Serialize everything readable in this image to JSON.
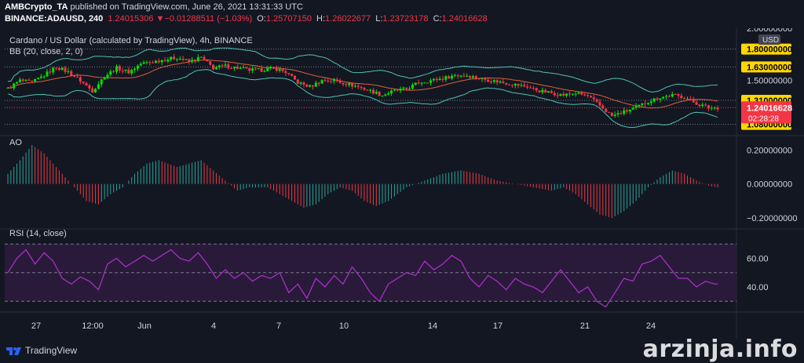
{
  "header": {
    "author": "AMBCrypto_TA",
    "published": "published on TradingView.com, June 26, 2021 13:31:33 UTC",
    "symbol": "BINANCE:ADAUSD, 240",
    "price": "1.24015306",
    "change": "−0.01288511 (−1.03%)",
    "o_label": "O:",
    "o_value": "1.25707150",
    "h_label": "H:",
    "h_value": "1.26022677",
    "l_label": "L:",
    "l_value": "1.23723178",
    "c_label": "C:",
    "c_value": "1.24016628"
  },
  "chart_data": [
    {
      "type": "candlestick",
      "title": "Cardano / US Dollar (calculated by TradingView), 4h, BINANCE",
      "indicator_label": "BB (20, close, 2, 0)",
      "currency": "USD",
      "price_labels": [
        "2.00000000",
        "1.80000000",
        "1.63000000",
        "1.50000000",
        "1.31000000",
        "1.08000000"
      ],
      "horizontal_levels": [
        1.8,
        1.63,
        1.31,
        1.08
      ],
      "last_price": "1.24016628",
      "countdown": "02:28:28",
      "ylim": [
        0.98,
        2.0
      ],
      "close_path": [
        [
          0,
          1.42
        ],
        [
          4,
          1.5
        ],
        [
          8,
          1.48
        ],
        [
          12,
          1.55
        ],
        [
          16,
          1.63
        ],
        [
          20,
          1.58
        ],
        [
          24,
          1.5
        ],
        [
          28,
          1.4
        ],
        [
          32,
          1.54
        ],
        [
          36,
          1.62
        ],
        [
          40,
          1.58
        ],
        [
          44,
          1.66
        ],
        [
          48,
          1.68
        ],
        [
          52,
          1.7
        ],
        [
          56,
          1.72
        ],
        [
          60,
          1.68
        ],
        [
          64,
          1.72
        ],
        [
          68,
          1.62
        ],
        [
          72,
          1.64
        ],
        [
          76,
          1.62
        ],
        [
          80,
          1.6
        ],
        [
          84,
          1.6
        ],
        [
          88,
          1.62
        ],
        [
          92,
          1.58
        ],
        [
          96,
          1.48
        ],
        [
          100,
          1.44
        ],
        [
          104,
          1.5
        ],
        [
          108,
          1.5
        ],
        [
          112,
          1.47
        ],
        [
          116,
          1.44
        ],
        [
          120,
          1.4
        ],
        [
          124,
          1.36
        ],
        [
          128,
          1.4
        ],
        [
          132,
          1.42
        ],
        [
          136,
          1.48
        ],
        [
          140,
          1.5
        ],
        [
          144,
          1.52
        ],
        [
          148,
          1.55
        ],
        [
          152,
          1.55
        ],
        [
          156,
          1.52
        ],
        [
          160,
          1.5
        ],
        [
          164,
          1.48
        ],
        [
          168,
          1.46
        ],
        [
          172,
          1.44
        ],
        [
          176,
          1.4
        ],
        [
          180,
          1.38
        ],
        [
          184,
          1.36
        ],
        [
          188,
          1.38
        ],
        [
          192,
          1.35
        ],
        [
          196,
          1.26
        ],
        [
          200,
          1.16
        ],
        [
          204,
          1.2
        ],
        [
          208,
          1.24
        ],
        [
          212,
          1.3
        ],
        [
          216,
          1.34
        ],
        [
          220,
          1.36
        ],
        [
          224,
          1.34
        ],
        [
          228,
          1.28
        ],
        [
          232,
          1.24
        ],
        [
          235,
          1.24
        ]
      ]
    },
    {
      "type": "bar",
      "title": "AO",
      "tick_labels": [
        "0.20000000",
        "0.00000000",
        "−0.20000000"
      ],
      "ylim": [
        -0.26,
        0.28
      ],
      "values_path": [
        [
          0,
          0.06
        ],
        [
          4,
          0.14
        ],
        [
          8,
          0.23
        ],
        [
          12,
          0.18
        ],
        [
          18,
          0.06
        ],
        [
          22,
          -0.02
        ],
        [
          26,
          -0.1
        ],
        [
          30,
          -0.12
        ],
        [
          34,
          -0.06
        ],
        [
          38,
          -0.02
        ],
        [
          42,
          0.06
        ],
        [
          46,
          0.12
        ],
        [
          50,
          0.14
        ],
        [
          56,
          0.1
        ],
        [
          60,
          0.12
        ],
        [
          64,
          0.14
        ],
        [
          68,
          0.08
        ],
        [
          72,
          0.02
        ],
        [
          76,
          -0.04
        ],
        [
          80,
          -0.02
        ],
        [
          86,
          -0.02
        ],
        [
          92,
          -0.08
        ],
        [
          98,
          -0.14
        ],
        [
          102,
          -0.12
        ],
        [
          106,
          -0.06
        ],
        [
          110,
          -0.02
        ],
        [
          114,
          -0.04
        ],
        [
          118,
          -0.1
        ],
        [
          122,
          -0.13
        ],
        [
          126,
          -0.1
        ],
        [
          132,
          -0.02
        ],
        [
          138,
          0.02
        ],
        [
          144,
          0.06
        ],
        [
          150,
          0.08
        ],
        [
          156,
          0.06
        ],
        [
          162,
          0.02
        ],
        [
          168,
          0.0
        ],
        [
          174,
          -0.02
        ],
        [
          180,
          -0.04
        ],
        [
          184,
          -0.02
        ],
        [
          188,
          -0.06
        ],
        [
          192,
          -0.12
        ],
        [
          196,
          -0.18
        ],
        [
          200,
          -0.2
        ],
        [
          204,
          -0.16
        ],
        [
          208,
          -0.1
        ],
        [
          212,
          -0.02
        ],
        [
          216,
          0.04
        ],
        [
          220,
          0.08
        ],
        [
          224,
          0.06
        ],
        [
          228,
          0.02
        ],
        [
          232,
          -0.01
        ],
        [
          235,
          -0.02
        ]
      ]
    },
    {
      "type": "line",
      "title": "RSI (14, close)",
      "tick_labels": [
        "60.00",
        "40.00"
      ],
      "bands": [
        70,
        50,
        30
      ],
      "ylim": [
        23,
        80
      ],
      "values_path": [
        [
          0,
          50
        ],
        [
          3,
          60
        ],
        [
          6,
          66
        ],
        [
          9,
          56
        ],
        [
          12,
          64
        ],
        [
          15,
          58
        ],
        [
          18,
          46
        ],
        [
          21,
          42
        ],
        [
          24,
          47
        ],
        [
          27,
          44
        ],
        [
          30,
          38
        ],
        [
          33,
          56
        ],
        [
          36,
          60
        ],
        [
          39,
          54
        ],
        [
          42,
          58
        ],
        [
          45,
          62
        ],
        [
          48,
          58
        ],
        [
          51,
          62
        ],
        [
          54,
          66
        ],
        [
          57,
          60
        ],
        [
          60,
          58
        ],
        [
          63,
          64
        ],
        [
          66,
          56
        ],
        [
          69,
          46
        ],
        [
          72,
          52
        ],
        [
          75,
          46
        ],
        [
          78,
          50
        ],
        [
          81,
          44
        ],
        [
          84,
          48
        ],
        [
          87,
          46
        ],
        [
          90,
          50
        ],
        [
          93,
          36
        ],
        [
          96,
          42
        ],
        [
          99,
          32
        ],
        [
          102,
          46
        ],
        [
          105,
          40
        ],
        [
          108,
          48
        ],
        [
          111,
          42
        ],
        [
          114,
          54
        ],
        [
          117,
          46
        ],
        [
          120,
          36
        ],
        [
          123,
          30
        ],
        [
          126,
          42
        ],
        [
          129,
          46
        ],
        [
          132,
          50
        ],
        [
          135,
          48
        ],
        [
          138,
          58
        ],
        [
          141,
          52
        ],
        [
          144,
          56
        ],
        [
          147,
          62
        ],
        [
          150,
          58
        ],
        [
          153,
          46
        ],
        [
          156,
          40
        ],
        [
          159,
          48
        ],
        [
          162,
          44
        ],
        [
          165,
          38
        ],
        [
          168,
          46
        ],
        [
          171,
          42
        ],
        [
          174,
          40
        ],
        [
          177,
          36
        ],
        [
          180,
          44
        ],
        [
          183,
          52
        ],
        [
          186,
          44
        ],
        [
          189,
          36
        ],
        [
          192,
          40
        ],
        [
          195,
          30
        ],
        [
          198,
          26
        ],
        [
          201,
          36
        ],
        [
          204,
          46
        ],
        [
          207,
          44
        ],
        [
          210,
          56
        ],
        [
          213,
          58
        ],
        [
          216,
          62
        ],
        [
          219,
          54
        ],
        [
          222,
          46
        ],
        [
          225,
          46
        ],
        [
          228,
          40
        ],
        [
          231,
          44
        ],
        [
          234,
          42
        ]
      ]
    },
    {
      "type": "time_axis",
      "x_tick_labels": [
        "27",
        "12:00",
        "Jun",
        "4",
        "7",
        "10",
        "14",
        "17",
        "21",
        "24"
      ]
    }
  ],
  "footer": {
    "brand": "TradingView",
    "watermark": "arzinja.info"
  },
  "colors": {
    "background": "#131722",
    "up": "#26a69a",
    "green": "#00e000",
    "down": "#f23645",
    "bb_band": "#4fc3b3",
    "bb_basis": "#e0603a",
    "rsi_line": "#b030d0",
    "rsi_fill": "#2a1a3a",
    "level_label": "#ffd700"
  }
}
